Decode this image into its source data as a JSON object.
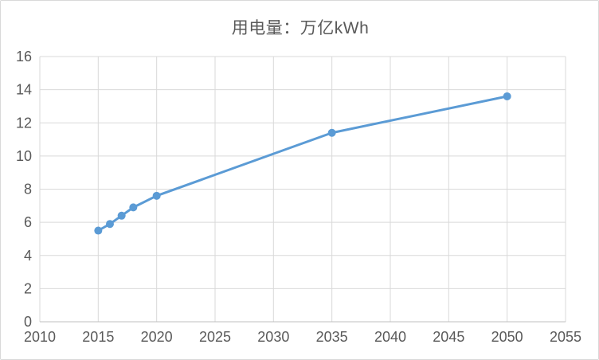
{
  "chart_data": {
    "type": "line",
    "title": "用电量：万亿kWh",
    "xlabel": "",
    "ylabel": "",
    "xlim": [
      2010,
      2055
    ],
    "ylim": [
      0,
      16
    ],
    "xticks": [
      2010,
      2015,
      2020,
      2025,
      2030,
      2035,
      2040,
      2045,
      2050,
      2055
    ],
    "yticks": [
      0,
      2,
      4,
      6,
      8,
      10,
      12,
      14,
      16
    ],
    "grid": true,
    "legend_position": "none",
    "marker": "circle",
    "series": [
      {
        "x": [
          2015,
          2016,
          2017,
          2018,
          2020,
          2035,
          2050
        ],
        "y": [
          5.5,
          5.9,
          6.4,
          6.9,
          7.6,
          11.4,
          13.6
        ]
      }
    ],
    "colors": {
      "series_line": "#5b9bd5",
      "marker_fill": "#5b9bd5",
      "gridline": "#d9d9d9",
      "axis_line": "#bfbfbf",
      "tick_text": "#595959",
      "title_text": "#595959",
      "background": "#ffffff",
      "frame_border": "#d9d9d9"
    }
  }
}
